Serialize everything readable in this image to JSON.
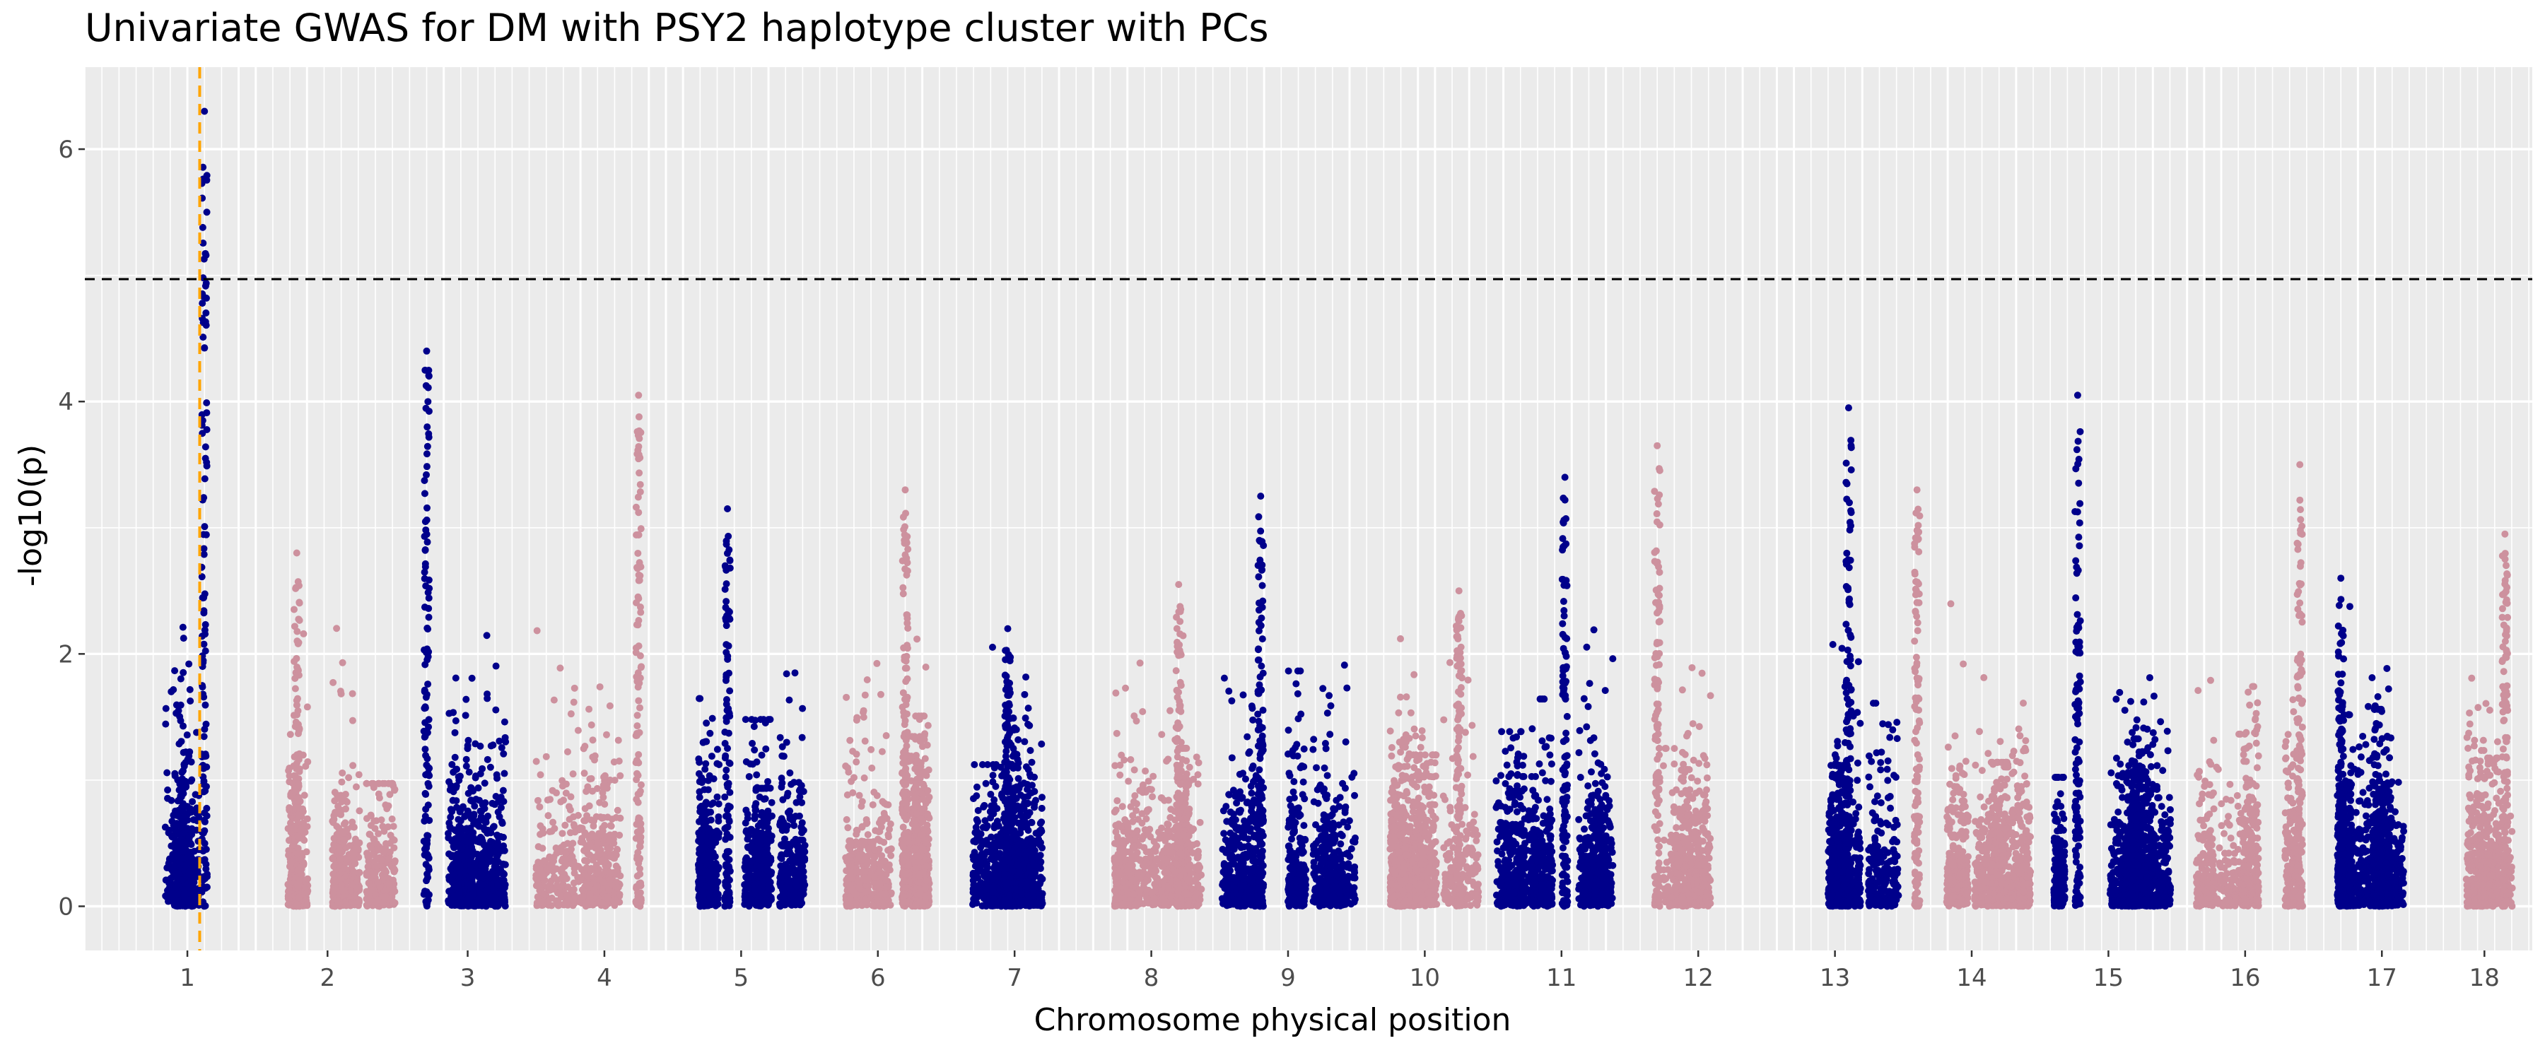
{
  "chart_data": {
    "type": "scatter",
    "title": "Univariate GWAS for DM with PSY2 haplotype cluster with PCs",
    "xlabel": "Chromosome physical position",
    "ylabel": "-log10(p)",
    "ylim": [
      -0.35,
      6.65
    ],
    "yticks": [
      0,
      2,
      4,
      6
    ],
    "grid": true,
    "legend": "none",
    "significance_threshold": 4.97,
    "highlight_marker_position": 1.18,
    "colors": {
      "panel_background": "#EBEBEB",
      "odd_chromosomes": "#00008B",
      "even_chromosomes": "#CD919E",
      "threshold_line": "#000000",
      "marker_line": "#FFA500"
    },
    "chromosomes": [
      {
        "label": "1",
        "start": 0.0,
        "end": 2.0,
        "max": 6.3,
        "peak_at": 1.25,
        "color": "#00008B"
      },
      {
        "label": "2",
        "start": 2.0,
        "end": 4.1,
        "max": 2.8,
        "peak_at": 2.6,
        "color": "#CD919E"
      },
      {
        "label": "3",
        "start": 4.1,
        "end": 6.1,
        "max": 4.4,
        "peak_at": 4.5,
        "color": "#00008B"
      },
      {
        "label": "4",
        "start": 6.1,
        "end": 8.1,
        "max": 4.05,
        "peak_at": 7.6,
        "color": "#CD919E"
      },
      {
        "label": "5",
        "start": 8.1,
        "end": 10.1,
        "max": 3.15,
        "peak_at": 8.9,
        "color": "#00008B"
      },
      {
        "label": "6",
        "start": 10.1,
        "end": 12.1,
        "max": 3.3,
        "peak_at": 11.5,
        "color": "#CD919E"
      },
      {
        "label": "7",
        "start": 12.1,
        "end": 14.1,
        "max": 2.2,
        "peak_at": 13.0,
        "color": "#00008B"
      },
      {
        "label": "8",
        "start": 14.1,
        "end": 16.1,
        "max": 2.55,
        "peak_at": 15.5,
        "color": "#CD919E"
      },
      {
        "label": "9",
        "start": 16.1,
        "end": 18.1,
        "max": 3.25,
        "peak_at": 16.7,
        "color": "#00008B"
      },
      {
        "label": "10",
        "start": 18.1,
        "end": 20.1,
        "max": 2.5,
        "peak_at": 19.6,
        "color": "#CD919E"
      },
      {
        "label": "11",
        "start": 20.1,
        "end": 22.1,
        "max": 3.4,
        "peak_at": 21.15,
        "color": "#00008B"
      },
      {
        "label": "12",
        "start": 22.1,
        "end": 24.1,
        "max": 3.65,
        "peak_at": 22.5,
        "color": "#CD919E"
      },
      {
        "label": "13",
        "start": 24.1,
        "end": 26.1,
        "max": 3.95,
        "peak_at": 25.3,
        "color": "#00008B"
      },
      {
        "label": "14",
        "start": 26.1,
        "end": 28.1,
        "max": 3.3,
        "peak_at": 26.3,
        "color": "#CD919E"
      },
      {
        "label": "15",
        "start": 28.1,
        "end": 30.1,
        "max": 4.05,
        "peak_at": 28.65,
        "color": "#00008B"
      },
      {
        "label": "16",
        "start": 30.1,
        "end": 32.1,
        "max": 3.5,
        "peak_at": 31.9,
        "color": "#CD919E"
      },
      {
        "label": "17",
        "start": 32.1,
        "end": 34.1,
        "max": 2.6,
        "peak_at": 32.5,
        "color": "#00008B"
      },
      {
        "label": "18",
        "start": 34.1,
        "end": 35.1,
        "max": 2.95,
        "peak_at": 34.9,
        "color": "#CD919E"
      }
    ]
  }
}
